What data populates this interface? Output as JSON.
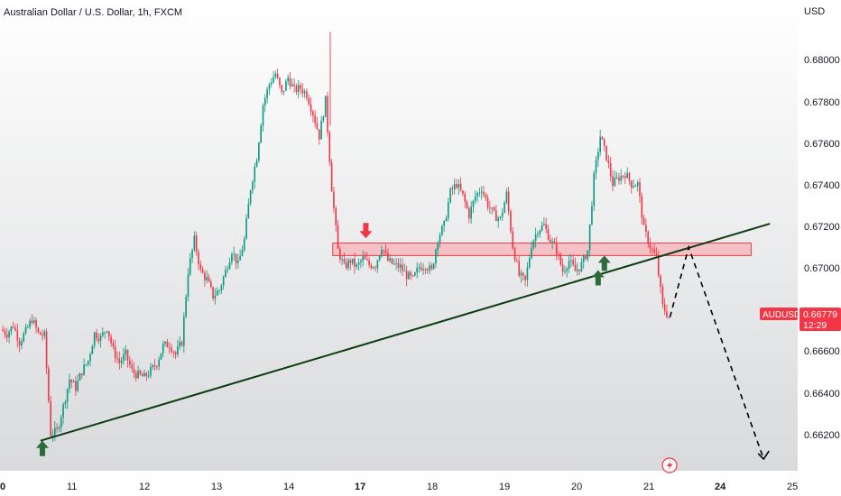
{
  "header": {
    "symbol_title": "Australian Dollar / U.S. Dollar, 1h, FXCM",
    "currency": "USD"
  },
  "price_axis": {
    "ticks": [
      "0.68000",
      "0.67800",
      "0.67600",
      "0.67400",
      "0.67200",
      "0.67000",
      "0.66600",
      "0.66400",
      "0.66200"
    ]
  },
  "time_axis": {
    "ticks": [
      {
        "label": "0",
        "bold": true
      },
      {
        "label": "11",
        "bold": false
      },
      {
        "label": "12",
        "bold": false
      },
      {
        "label": "13",
        "bold": false
      },
      {
        "label": "14",
        "bold": false
      },
      {
        "label": "17",
        "bold": true
      },
      {
        "label": "18",
        "bold": false
      },
      {
        "label": "19",
        "bold": false
      },
      {
        "label": "20",
        "bold": false
      },
      {
        "label": "21",
        "bold": false
      },
      {
        "label": "24",
        "bold": true
      },
      {
        "label": "25",
        "bold": false
      }
    ]
  },
  "price_tag": {
    "symbol": "AUDUSD",
    "price": "0.66779",
    "countdown": "12:29",
    "color": "#f23645"
  },
  "colors": {
    "bull": "#089981",
    "bear": "#f23645",
    "zone_fill": "#f7b3b8",
    "trendline": "#0d3b12",
    "arrow_up": "#2e6b3a",
    "arrow_down": "#f23645",
    "axis_text": "#131722"
  },
  "chart_data": {
    "type": "candlestick",
    "title": "Australian Dollar / U.S. Dollar, 1h, FXCM",
    "yrange": [
      0.6608,
      0.6832
    ],
    "path": [
      [
        0,
        0.6672
      ],
      [
        1,
        0.667
      ],
      [
        2,
        0.6674
      ],
      [
        3,
        0.6666
      ],
      [
        4,
        0.6671
      ],
      [
        5,
        0.6677
      ],
      [
        6,
        0.667
      ],
      [
        7,
        0.6669
      ],
      [
        8,
        0.6622
      ],
      [
        9,
        0.6623
      ],
      [
        10,
        0.6635
      ],
      [
        11,
        0.6648
      ],
      [
        12,
        0.6644
      ],
      [
        13,
        0.6652
      ],
      [
        14,
        0.6657
      ],
      [
        15,
        0.667
      ],
      [
        16,
        0.6668
      ],
      [
        17,
        0.6673
      ],
      [
        18,
        0.6662
      ],
      [
        19,
        0.6656
      ],
      [
        20,
        0.666
      ],
      [
        21,
        0.6652
      ],
      [
        22,
        0.665
      ],
      [
        23,
        0.6649
      ],
      [
        24,
        0.6652
      ],
      [
        25,
        0.6656
      ],
      [
        26,
        0.6664
      ],
      [
        27,
        0.6665
      ],
      [
        28,
        0.666
      ],
      [
        29,
        0.6666
      ],
      [
        30,
        0.67
      ],
      [
        31,
        0.6715
      ],
      [
        32,
        0.67
      ],
      [
        33,
        0.6696
      ],
      [
        34,
        0.6688
      ],
      [
        35,
        0.6691
      ],
      [
        36,
        0.67
      ],
      [
        37,
        0.671
      ],
      [
        38,
        0.6703
      ],
      [
        39,
        0.6715
      ],
      [
        40,
        0.674
      ],
      [
        41,
        0.6755
      ],
      [
        42,
        0.678
      ],
      [
        43,
        0.679
      ],
      [
        44,
        0.6795
      ],
      [
        45,
        0.6785
      ],
      [
        46,
        0.6793
      ],
      [
        47,
        0.6787
      ],
      [
        48,
        0.6788
      ],
      [
        49,
        0.6785
      ],
      [
        50,
        0.6776
      ],
      [
        51,
        0.6765
      ],
      [
        52,
        0.6782
      ],
      [
        53,
        0.674
      ],
      [
        54,
        0.671
      ],
      [
        55,
        0.6702
      ],
      [
        56,
        0.6705
      ],
      [
        57,
        0.6702
      ],
      [
        58,
        0.6706
      ],
      [
        59,
        0.6703
      ],
      [
        60,
        0.6703
      ],
      [
        61,
        0.6712
      ],
      [
        62,
        0.6705
      ],
      [
        63,
        0.6703
      ],
      [
        64,
        0.6702
      ],
      [
        65,
        0.6698
      ],
      [
        66,
        0.6696
      ],
      [
        67,
        0.6702
      ],
      [
        68,
        0.6703
      ],
      [
        69,
        0.67
      ],
      [
        70,
        0.6716
      ],
      [
        71,
        0.6722
      ],
      [
        72,
        0.6738
      ],
      [
        73,
        0.6742
      ],
      [
        74,
        0.6736
      ],
      [
        75,
        0.6727
      ],
      [
        76,
        0.6736
      ],
      [
        77,
        0.674
      ],
      [
        78,
        0.6732
      ],
      [
        79,
        0.6727
      ],
      [
        80,
        0.6725
      ],
      [
        81,
        0.6737
      ],
      [
        82,
        0.6712
      ],
      [
        83,
        0.6698
      ],
      [
        84,
        0.6695
      ],
      [
        85,
        0.6713
      ],
      [
        86,
        0.672
      ],
      [
        87,
        0.6722
      ],
      [
        88,
        0.6715
      ],
      [
        89,
        0.671
      ],
      [
        90,
        0.67
      ],
      [
        91,
        0.6705
      ],
      [
        92,
        0.67
      ],
      [
        93,
        0.6703
      ],
      [
        94,
        0.671
      ],
      [
        95,
        0.6745
      ],
      [
        96,
        0.6765
      ],
      [
        97,
        0.6755
      ],
      [
        98,
        0.6742
      ],
      [
        99,
        0.6745
      ],
      [
        100,
        0.6747
      ],
      [
        101,
        0.6742
      ],
      [
        102,
        0.6742
      ],
      [
        103,
        0.672
      ],
      [
        104,
        0.6712
      ],
      [
        105,
        0.6706
      ],
      [
        106,
        0.6683
      ],
      [
        107,
        0.66779
      ]
    ],
    "support_zone": {
      "from_bar": 53,
      "to_bar": 120,
      "low": 0.67075,
      "high": 0.67135
    },
    "trendline": {
      "from": [
        6.2,
        0.66185
      ],
      "to": [
        123,
        0.67228
      ]
    },
    "projection": [
      [
        107,
        0.66779
      ],
      [
        110,
        0.67115
      ],
      [
        122,
        0.66097
      ]
    ],
    "markers": [
      {
        "type": "up",
        "bar": 6.5,
        "price": 0.66185
      },
      {
        "type": "down",
        "bar": 58.3,
        "price": 0.67158
      },
      {
        "type": "up",
        "bar": 96.5,
        "price": 0.67075
      },
      {
        "type": "up",
        "bar": 95.5,
        "price": 0.67005
      }
    ]
  }
}
